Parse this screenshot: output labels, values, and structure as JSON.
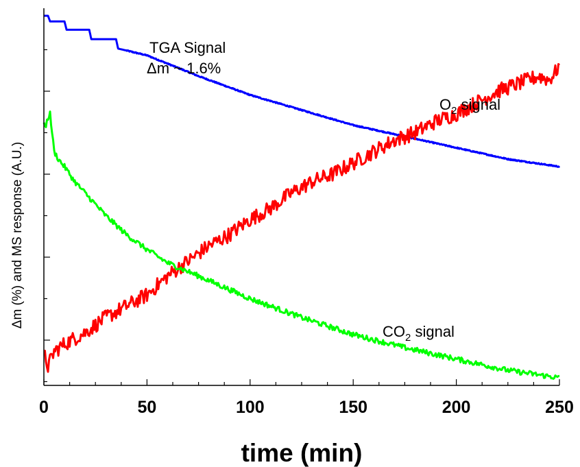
{
  "chart_data": {
    "type": "line",
    "xlabel": "time (min)",
    "ylabel": "Δm (%) and MS response (A.U.)",
    "xlim": [
      0,
      250
    ],
    "ylim": [
      0,
      100
    ],
    "x_ticks": [
      "0",
      "50",
      "100",
      "150",
      "200",
      "250"
    ],
    "y_tick_labels_shown": false,
    "grid": false,
    "legend": "none",
    "annotations": {
      "tga_line1": "TGA Signal",
      "tga_line2": "Δm ~ 1.6%",
      "o2_prefix": "O",
      "o2_sub": "2",
      "o2_suffix": " signal",
      "co2_prefix": "CO",
      "co2_sub": "2",
      "co2_suffix": " signal"
    },
    "series": [
      {
        "key": "tga",
        "color": "#0000ff",
        "noise": 0.15,
        "x": [
          0,
          2,
          3,
          10,
          11,
          22,
          23,
          35,
          36,
          50,
          75,
          100,
          125,
          150,
          175,
          200,
          225,
          250
        ],
        "y": [
          98,
          98,
          96.5,
          96.5,
          94.3,
          94.3,
          91.8,
          91.8,
          89.3,
          87.5,
          82,
          77,
          73,
          69,
          66,
          63,
          60,
          58
        ]
      },
      {
        "key": "o2",
        "color": "#ff0000",
        "noise": 2.0,
        "x": [
          0,
          1,
          2,
          5,
          10,
          20,
          30,
          40,
          50,
          60,
          70,
          80,
          90,
          100,
          110,
          120,
          130,
          140,
          150,
          160,
          170,
          180,
          190,
          200,
          210,
          220,
          230,
          240,
          245,
          248,
          250
        ],
        "y": [
          8,
          7,
          5,
          9,
          11,
          14,
          18,
          21,
          24,
          29,
          33,
          37,
          40,
          44,
          47,
          51,
          54,
          56,
          59,
          62,
          65,
          67,
          70,
          72,
          75,
          78,
          80,
          82,
          81,
          83,
          85
        ]
      },
      {
        "key": "co2",
        "color": "#00ff00",
        "noise": 0.7,
        "x": [
          0,
          1,
          2,
          3,
          5,
          7,
          10,
          15,
          20,
          25,
          30,
          40,
          50,
          60,
          75,
          100,
          125,
          150,
          175,
          200,
          225,
          250
        ],
        "y": [
          69,
          69,
          71,
          72,
          62,
          60,
          58,
          54,
          51,
          48,
          45,
          40,
          36,
          32.5,
          29,
          23,
          18,
          13.5,
          10,
          7,
          4,
          2
        ]
      }
    ]
  }
}
